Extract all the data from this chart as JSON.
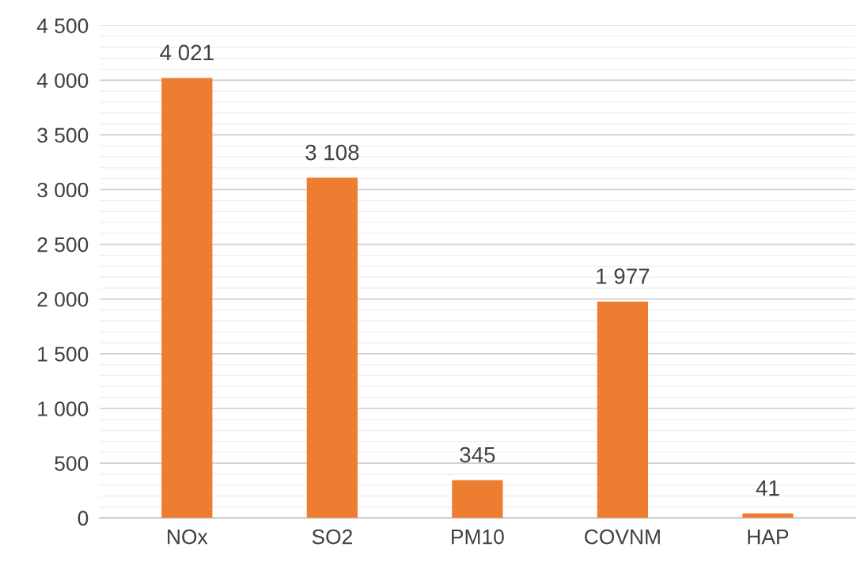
{
  "chart_data": {
    "type": "bar",
    "categories": [
      "NOx",
      "SO2",
      "PM10",
      "COVNM",
      "HAP"
    ],
    "values": [
      4021,
      3108,
      345,
      1977,
      41
    ],
    "value_labels": [
      "4 021",
      "3 108",
      "345",
      "1 977",
      "41"
    ],
    "color": "#ed7d31",
    "ylim": [
      0,
      4500
    ],
    "yticks": [
      0,
      500,
      {
        "value": 1000,
        "label": "1 000"
      },
      {
        "value": 1500,
        "label": "1 500"
      },
      {
        "value": 2000,
        "label": "2 000"
      },
      {
        "value": 2500,
        "label": "2 500"
      },
      {
        "value": 3000,
        "label": "3 000"
      },
      {
        "value": 3500,
        "label": "3 500"
      },
      {
        "value": 4000,
        "label": "4 000"
      },
      {
        "value": 4500,
        "label": "4 500"
      }
    ],
    "grid": "y"
  }
}
